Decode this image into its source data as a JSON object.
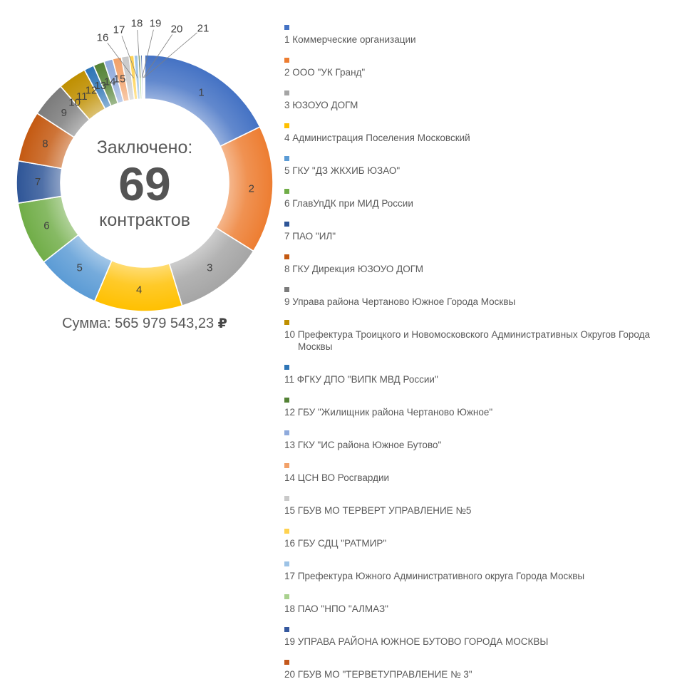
{
  "chart": {
    "center_title": "Заключено:",
    "center_value": "69",
    "center_unit": "контрактов",
    "sum_text": "Сумма: 565 979 543,23",
    "currency": "₽"
  },
  "chart_data": {
    "type": "pie",
    "subtype": "donut",
    "title": "Заключено: 69 контрактов",
    "total_contracts": 69,
    "total_sum": "565 979 543,23 ₽",
    "legend_position": "right",
    "grid": false,
    "label_color": "#404040",
    "leader_line_color": "#7F7F7F",
    "segments": [
      {
        "n": 1,
        "name": "Коммерческие организации",
        "pct": 17.8,
        "angle_deg": 64,
        "color": "#4472C4"
      },
      {
        "n": 2,
        "name": "ООО \"УК Гранд\"",
        "pct": 16.1,
        "angle_deg": 58,
        "color": "#ED7D31"
      },
      {
        "n": 3,
        "name": "ЮЗОУО ДОГМ",
        "pct": 11.4,
        "angle_deg": 41,
        "color": "#A5A5A5"
      },
      {
        "n": 4,
        "name": "Администрация Поселения Московский",
        "pct": 11.1,
        "angle_deg": 40,
        "color": "#FFC000"
      },
      {
        "n": 5,
        "name": "ГКУ \"ДЗ ЖКХИБ ЮЗАО\"",
        "pct": 8.1,
        "angle_deg": 29,
        "color": "#5B9BD5"
      },
      {
        "n": 6,
        "name": "ГлавУпДК при МИД России",
        "pct": 8.1,
        "angle_deg": 29,
        "color": "#70AD47"
      },
      {
        "n": 7,
        "name": "ПАО \"ИЛ\"",
        "pct": 5.3,
        "angle_deg": 19,
        "color": "#2E5597"
      },
      {
        "n": 8,
        "name": "ГКУ Дирекция ЮЗОУО ДОГМ",
        "pct": 6.4,
        "angle_deg": 23,
        "color": "#C45911"
      },
      {
        "n": 9,
        "name": "Управа района Чертаново Южное Города Москвы",
        "pct": 4.4,
        "angle_deg": 16,
        "color": "#7B7B7B"
      },
      {
        "n": 10,
        "name": "Префектура Троицкого и Новомосковского Административных Округов Города Москвы",
        "pct": 3.6,
        "angle_deg": 13,
        "color": "#BF8F00",
        "label_angle": 319
      },
      {
        "n": 11,
        "name": "ФГКУ ДПО \"ВИПК МВД России\"",
        "pct": 1.3,
        "angle_deg": 4.5,
        "color": "#2E75B6",
        "label_angle": 324
      },
      {
        "n": 12,
        "name": "ГБУ \"Жилищник района Чертаново Южное\"",
        "pct": 1.4,
        "angle_deg": 5,
        "color": "#548235",
        "label_angle": 330
      },
      {
        "n": 13,
        "name": "ГКУ \"ИС района Южное Бутово\"",
        "pct": 1.1,
        "angle_deg": 4,
        "color": "#8FAADC",
        "label_angle": 335.5
      },
      {
        "n": 14,
        "name": "ЦСН ВО Росгвардии",
        "pct": 1.1,
        "angle_deg": 4,
        "color": "#F2A169",
        "label_angle": 341
      },
      {
        "n": 15,
        "name": "ГБУВ МО ТЕРВЕРТ УПРАВЛЕНИЕ №5",
        "pct": 1.0,
        "angle_deg": 3.5,
        "color": "#C9C9C9",
        "label_angle": 346.5
      },
      {
        "n": 16,
        "name": "ГБУ СДЦ \"РАТМИР\"",
        "pct": 0.6,
        "angle_deg": 2.2,
        "color": "#FFD24F",
        "outside": [
          144,
          53
        ]
      },
      {
        "n": 17,
        "name": "Префектура Южного Административного округа Города Москвы",
        "pct": 0.5,
        "angle_deg": 1.8,
        "color": "#9DC3E6",
        "outside": [
          167,
          42
        ]
      },
      {
        "n": 18,
        "name": "ПАО \"НПО \"АЛМАЗ\"",
        "pct": 0.3,
        "angle_deg": 1.2,
        "color": "#A9D18E",
        "outside": [
          192,
          33
        ]
      },
      {
        "n": 19,
        "name": "УПРАВА РАЙОНА ЮЖНОЕ БУТОВО ГОРОДА МОСКВЫ",
        "pct": 0.2,
        "angle_deg": 0.8,
        "color": "#35589E",
        "outside": [
          218,
          33
        ]
      },
      {
        "n": 20,
        "name": "ГБУВ МО \"ТЕРВЕТУПРАВЛЕНИЕ № 3\"",
        "pct": 0.15,
        "angle_deg": 0.5,
        "color": "#C4581C",
        "outside": [
          248,
          41
        ]
      },
      {
        "n": 21,
        "name": "",
        "pct": 0.15,
        "angle_deg": 0.5,
        "color": "#8C8C8C",
        "outside": [
          285,
          40
        ]
      }
    ]
  }
}
